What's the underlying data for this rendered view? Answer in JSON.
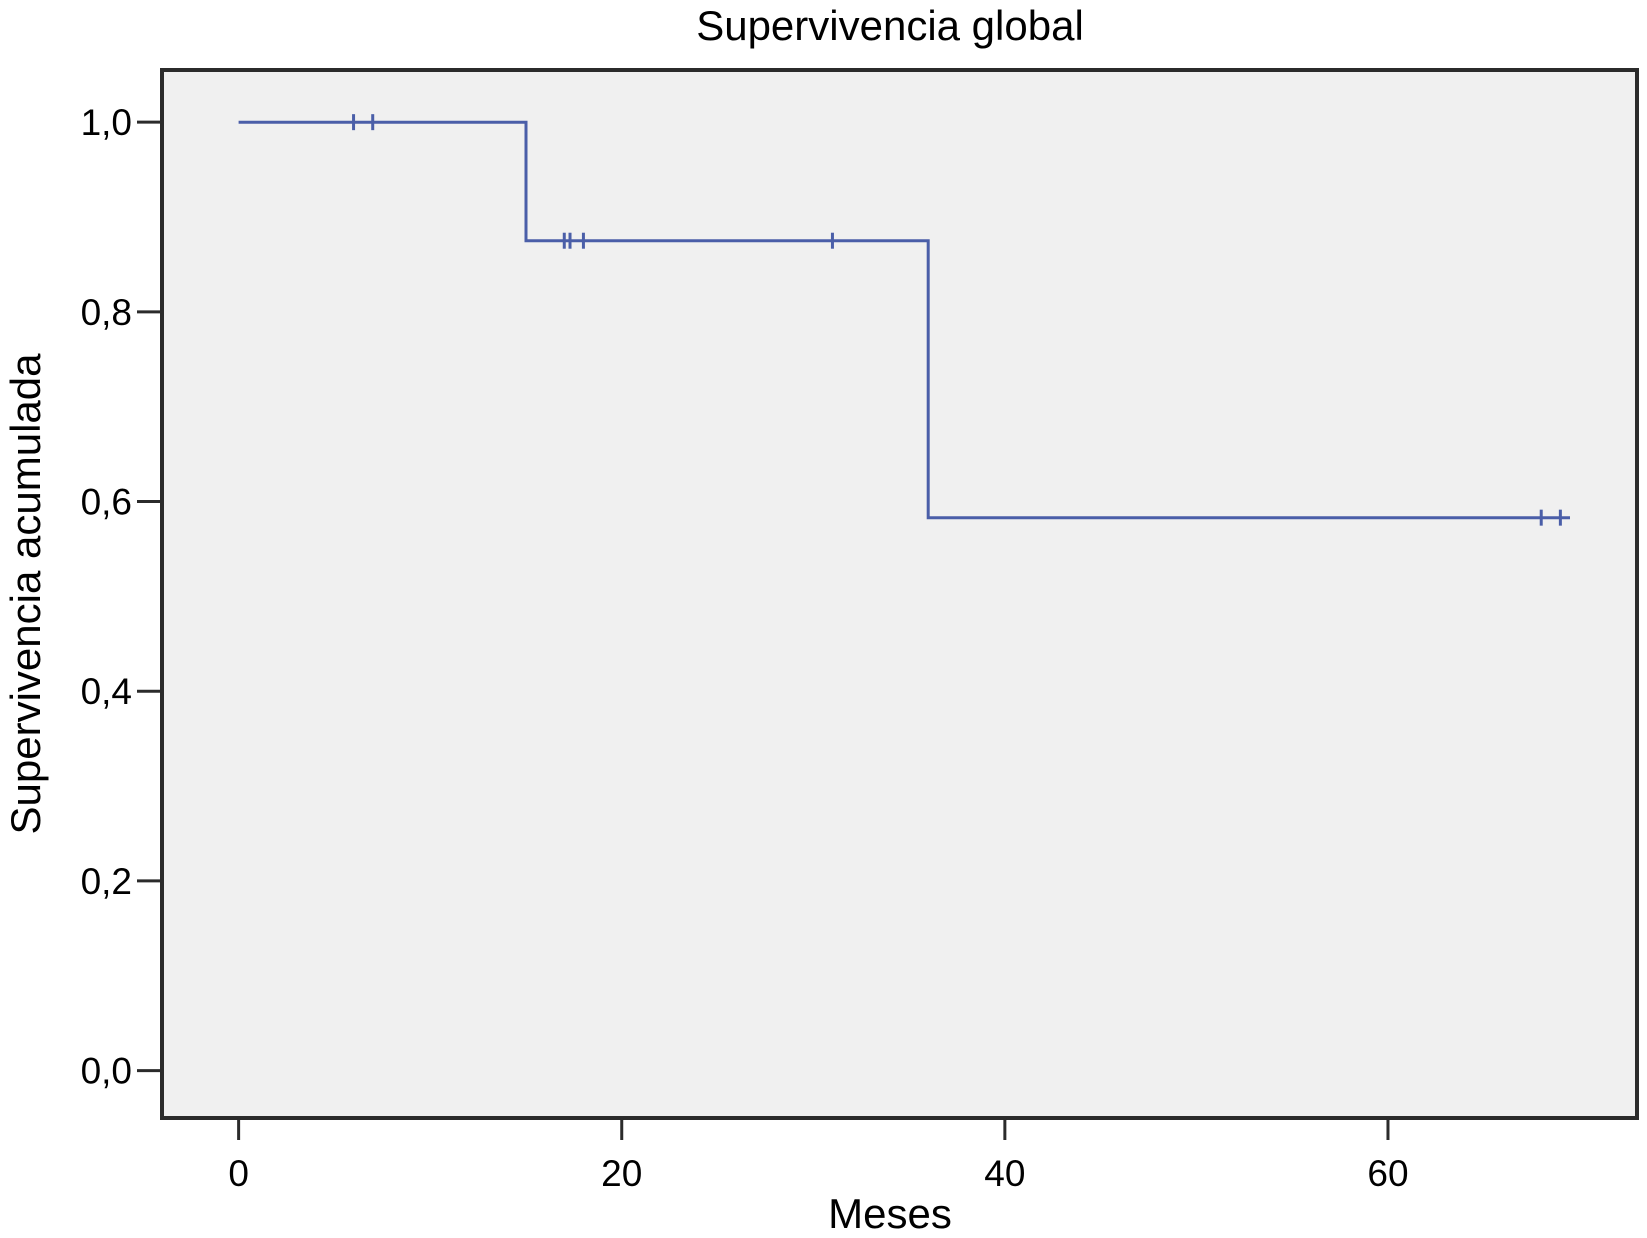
{
  "chart_data": {
    "type": "line",
    "title": "Supervivencia global",
    "xlabel": "Meses",
    "ylabel": "Supervivencia acumulada",
    "xlim": [
      -4,
      73
    ],
    "ylim": [
      -0.05,
      1.055
    ],
    "x_ticks": [
      0,
      20,
      40,
      60
    ],
    "x_tick_labels": [
      "0",
      "20",
      "40",
      "60"
    ],
    "y_ticks": [
      0.0,
      0.2,
      0.4,
      0.6,
      0.8,
      1.0
    ],
    "y_tick_labels": [
      "0,0",
      "0,2",
      "0,4",
      "0,6",
      "0,8",
      "1,0"
    ],
    "grid": false,
    "legend": "none",
    "colors": {
      "plot_background": "#f0f0f0",
      "series": "#4a5ea8",
      "frame": "#2b2b2b"
    },
    "series": [
      {
        "step_x": [
          0,
          15,
          15,
          36,
          36,
          69.5
        ],
        "step_y": [
          1.0,
          1.0,
          0.875,
          0.875,
          0.583,
          0.583
        ],
        "censored": [
          {
            "x": 6,
            "y": 1.0
          },
          {
            "x": 7,
            "y": 1.0
          },
          {
            "x": 17,
            "y": 0.875
          },
          {
            "x": 17.3,
            "y": 0.875
          },
          {
            "x": 18,
            "y": 0.875
          },
          {
            "x": 31,
            "y": 0.875
          },
          {
            "x": 68,
            "y": 0.583
          },
          {
            "x": 69,
            "y": 0.583
          }
        ]
      }
    ]
  }
}
